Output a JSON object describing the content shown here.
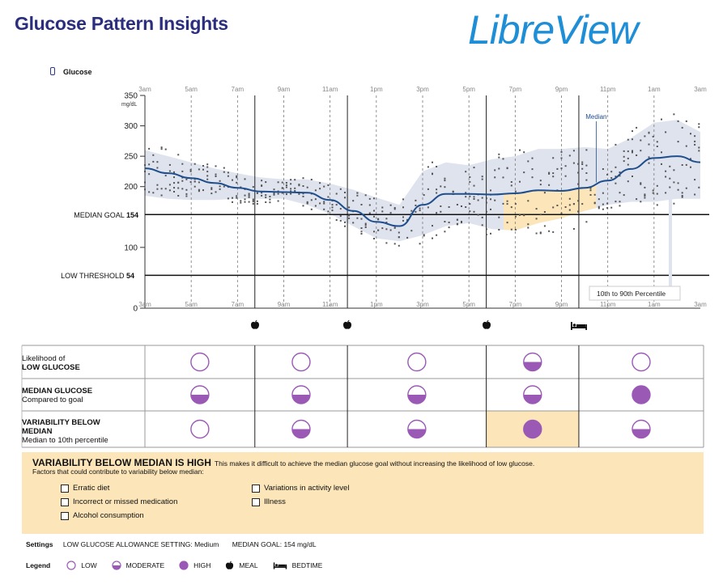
{
  "header": {
    "title": "Glucose Pattern Insights",
    "brand": "LibreView",
    "glucose_label": "Glucose"
  },
  "chart": {
    "y_unit": "mg/dL",
    "y_ticks": [
      "350",
      "300",
      "250",
      "200",
      "100",
      "0"
    ],
    "x_ticks": [
      "3am",
      "5am",
      "7am",
      "9am",
      "11am",
      "1pm",
      "3pm",
      "5pm",
      "7pm",
      "9pm",
      "11pm",
      "1am",
      "3am"
    ],
    "median_goal_label": "MEDIAN GOAL",
    "median_goal_value": "154",
    "low_threshold_label": "LOW THRESHOLD",
    "low_threshold_value": "54",
    "median_annotation": "Median",
    "percentile_annotation": "10th to 90th Percentile"
  },
  "chart_data": {
    "type": "line",
    "x_label": "",
    "x_range_hours": [
      0,
      24
    ],
    "ylim": [
      0,
      350
    ],
    "reference_lines": [
      {
        "name": "MEDIAN GOAL",
        "y": 154
      },
      {
        "name": "LOW THRESHOLD",
        "y": 54
      }
    ],
    "series": [
      {
        "name": "Median",
        "x": [
          0,
          1,
          2,
          3,
          4,
          5,
          6,
          7,
          8,
          9,
          10,
          11,
          12,
          13,
          14,
          15,
          16,
          17,
          18,
          19,
          20,
          21,
          22,
          23,
          24
        ],
        "y": [
          230,
          222,
          214,
          206,
          198,
          192,
          191,
          190,
          178,
          160,
          142,
          135,
          170,
          188,
          188,
          187,
          189,
          194,
          193,
          198,
          210,
          229,
          247,
          250,
          240
        ]
      },
      {
        "name": "10th to 90th Percentile",
        "x": [
          0,
          1,
          2,
          3,
          4,
          5,
          6,
          7,
          8,
          9,
          10,
          11,
          12,
          13,
          14,
          15,
          16,
          17,
          18,
          19,
          20,
          21,
          22,
          23,
          24
        ],
        "low": [
          185,
          180,
          178,
          178,
          180,
          180,
          180,
          170,
          155,
          135,
          115,
          110,
          120,
          135,
          140,
          130,
          128,
          140,
          148,
          160,
          170,
          175,
          175,
          180,
          180
        ],
        "high": [
          260,
          250,
          240,
          230,
          222,
          215,
          212,
          212,
          205,
          195,
          182,
          170,
          225,
          240,
          235,
          245,
          250,
          262,
          262,
          265,
          262,
          280,
          305,
          310,
          290
        ]
      }
    ]
  },
  "meals_icon": "apple-icon",
  "bedtime_icon": "bed-icon",
  "grid_rows": [
    {
      "label_line1": "Likelihood of",
      "label_bold": "LOW GLUCOSE",
      "label_line2": "",
      "levels": [
        "low",
        "low",
        "low",
        "moderate",
        "low"
      ]
    },
    {
      "label_line1": "",
      "label_bold": "MEDIAN GLUCOSE",
      "label_line2": "Compared to goal",
      "levels": [
        "moderate",
        "moderate",
        "moderate",
        "moderate",
        "high"
      ]
    },
    {
      "label_line1": "",
      "label_bold": "VARIABILITY BELOW MEDIAN",
      "label_line2": "Median to 10th percentile",
      "levels": [
        "low",
        "moderate",
        "moderate",
        "high",
        "moderate"
      ]
    }
  ],
  "variability": {
    "title": "VARIABILITY BELOW MEDIAN IS HIGH",
    "description": "This makes it difficult to achieve the median glucose goal without increasing the likelihood of low glucose.",
    "factors_intro": "Factors that could contribute to variability below median:",
    "factors": [
      "Erratic diet",
      "Incorrect or missed medication",
      "Alcohol consumption",
      "Variations in activity level",
      "Illness"
    ]
  },
  "settings": {
    "label": "Settings",
    "allowance": "LOW GLUCOSE ALLOWANCE SETTING: Medium",
    "goal": "MEDIAN GOAL: 154 mg/dL"
  },
  "legend": {
    "label": "Legend",
    "low": "LOW",
    "moderate": "MODERATE",
    "high": "HIGH",
    "meal": "MEAL",
    "bedtime": "BEDTIME"
  },
  "colors": {
    "purple": "#9b59b6",
    "band": "#dfe3ee",
    "highlight": "#fbe5b9",
    "median": "#1f4e8c",
    "title": "#2b2e7e",
    "brand": "#1e8fd6"
  }
}
